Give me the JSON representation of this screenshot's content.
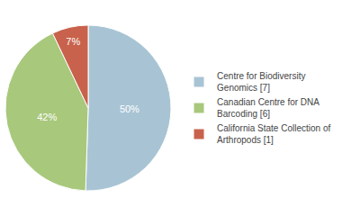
{
  "chart_data": {
    "type": "pie",
    "categories": [
      "Centre for Biodiversity\nGenomics [7]",
      "Canadian Centre for DNA\nBarcoding [6]",
      "California State Collection of\nArthropods [1]"
    ],
    "values": [
      50,
      42,
      7
    ],
    "value_labels": [
      "50%",
      "42%",
      "7%"
    ],
    "colors": [
      "#a8c4d4",
      "#a8c87c",
      "#c8624c"
    ],
    "data_labels": true,
    "legend": "right"
  }
}
